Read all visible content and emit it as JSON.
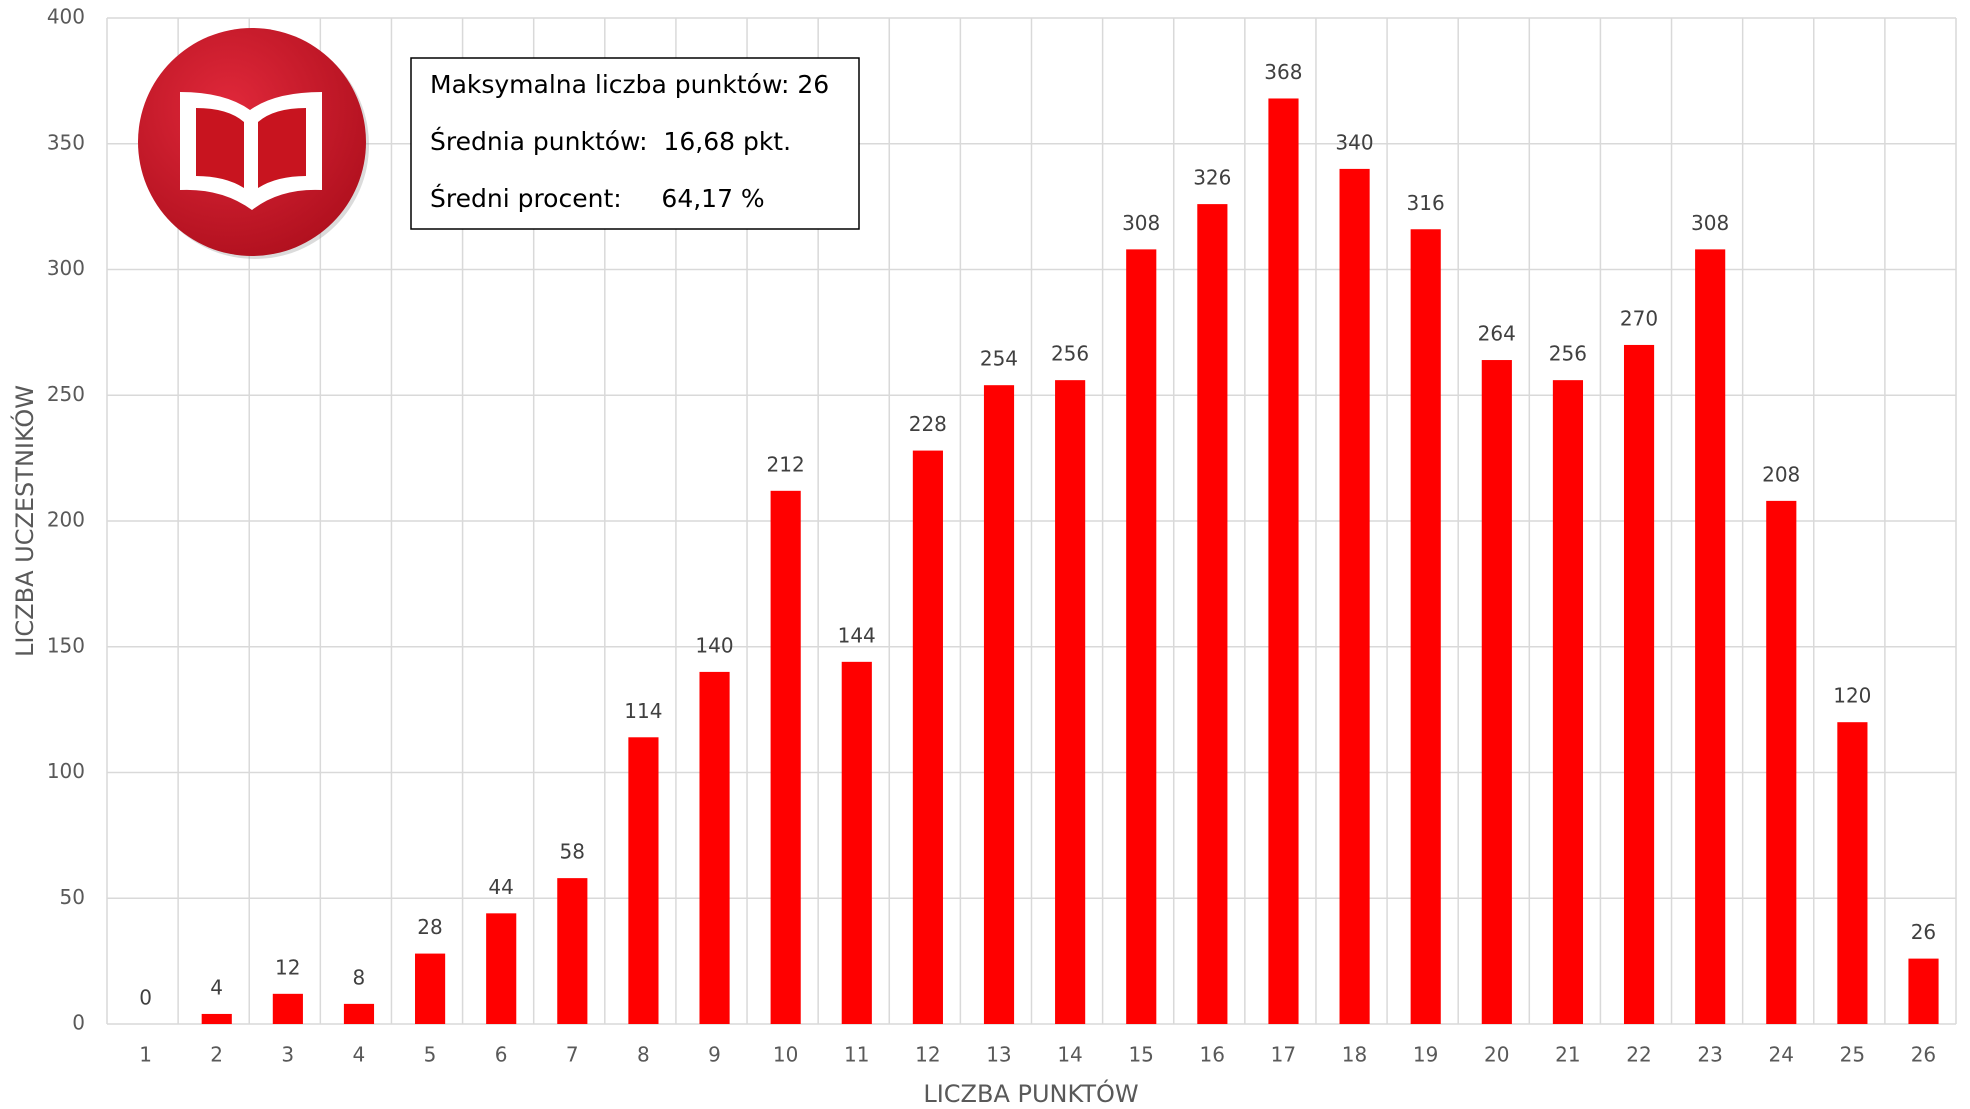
{
  "chart_data": {
    "type": "bar",
    "categories": [
      "1",
      "2",
      "3",
      "4",
      "5",
      "6",
      "7",
      "8",
      "9",
      "10",
      "11",
      "12",
      "13",
      "14",
      "15",
      "16",
      "17",
      "18",
      "19",
      "20",
      "21",
      "22",
      "23",
      "24",
      "25",
      "26"
    ],
    "values": [
      0,
      4,
      12,
      8,
      28,
      44,
      58,
      114,
      140,
      212,
      144,
      228,
      254,
      256,
      308,
      326,
      368,
      340,
      316,
      264,
      256,
      270,
      308,
      208,
      120,
      26
    ],
    "color": "#ff0000",
    "ylim": [
      0,
      400
    ],
    "yticks": [
      0,
      50,
      100,
      150,
      200,
      250,
      300,
      350,
      400
    ],
    "grid": true,
    "xlabel": "LICZBA PUNKTÓW",
    "ylabel": "LICZBA UCZESTNIKÓW",
    "info": [
      "Maksymalna liczba punktów: 26",
      "Średnia punktów:  16,68 pkt.",
      "Średni procent:     64,17 %"
    ]
  }
}
